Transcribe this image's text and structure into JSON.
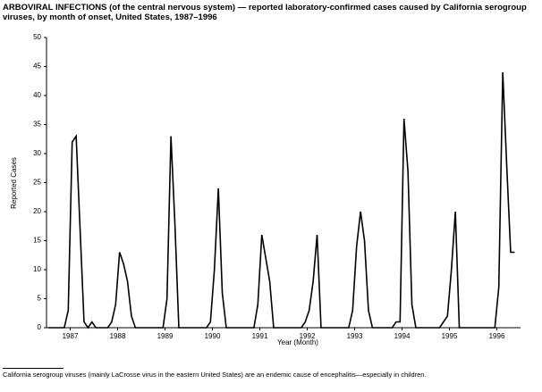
{
  "chart_data": {
    "type": "line",
    "title": "ARBOVIRAL INFECTIONS (of the central nervous system) — reported laboratory-confirmed cases caused by California serogroup viruses, by month of onset, United States, 1987–1996",
    "x_label": "Year (Month)",
    "y_label": "Reported Cases",
    "footnote": "California serogroup viruses (mainly LaCrosse virus in the eastern United States) are an endemic cause of encephalitis—especially in children.",
    "color": "#000000",
    "xlim": [
      0,
      120
    ],
    "xticks": [
      {
        "value": 6,
        "label": "1987"
      },
      {
        "value": 18,
        "label": "1988"
      },
      {
        "value": 30,
        "label": "1989"
      },
      {
        "value": 42,
        "label": "1990"
      },
      {
        "value": 54,
        "label": "1991"
      },
      {
        "value": 66,
        "label": "1992"
      },
      {
        "value": 78,
        "label": "1993"
      },
      {
        "value": 90,
        "label": "1994"
      },
      {
        "value": 102,
        "label": "1995"
      },
      {
        "value": 114,
        "label": "1996"
      }
    ],
    "ylim": [
      0,
      50
    ],
    "yticks": [
      0,
      5,
      10,
      15,
      20,
      25,
      30,
      35,
      40,
      45,
      50
    ],
    "values": [
      0,
      0,
      0,
      0,
      0,
      3,
      32,
      33,
      17,
      1,
      0,
      1,
      0,
      0,
      0,
      0,
      1,
      4,
      13,
      11,
      8,
      2,
      0,
      0,
      0,
      0,
      0,
      0,
      0,
      0,
      5,
      33,
      18,
      0,
      0,
      0,
      0,
      0,
      0,
      0,
      0,
      1,
      10,
      24,
      6,
      0,
      0,
      0,
      0,
      0,
      0,
      0,
      0,
      4,
      16,
      12,
      8,
      0,
      0,
      0,
      0,
      0,
      0,
      0,
      0,
      1,
      3,
      8,
      16,
      0,
      0,
      0,
      0,
      0,
      0,
      0,
      0,
      3,
      14,
      20,
      15,
      3,
      0,
      0,
      0,
      0,
      0,
      0,
      1,
      1,
      36,
      27,
      4,
      0,
      0,
      0,
      0,
      0,
      0,
      0,
      1,
      2,
      10,
      20,
      0,
      0,
      0,
      0,
      0,
      0,
      0,
      0,
      0,
      0,
      7,
      44,
      28,
      13,
      13,
      null
    ]
  }
}
